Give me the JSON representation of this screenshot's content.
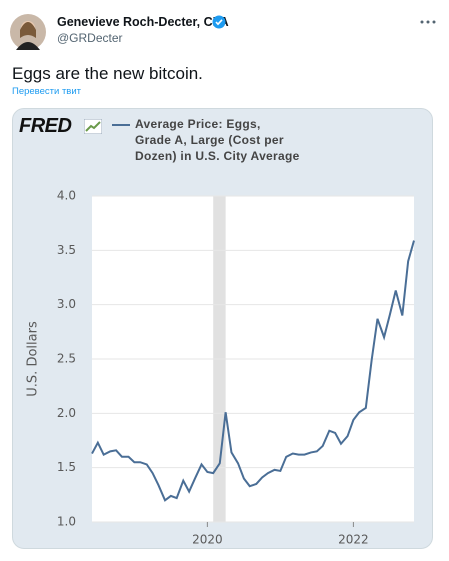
{
  "tweet": {
    "author": "Genevieve Roch-Decter, CFA",
    "handle": "@GRDecter",
    "text": "Eggs are the new bitcoin.",
    "translate": "Перевести твит"
  },
  "chart_data": {
    "type": "line",
    "logo": "FRED",
    "ylabel": "U.S. Dollars",
    "x": [
      2018.42,
      2018.5,
      2018.58,
      2018.67,
      2018.75,
      2018.83,
      2018.92,
      2019.0,
      2019.08,
      2019.17,
      2019.25,
      2019.33,
      2019.42,
      2019.5,
      2019.58,
      2019.67,
      2019.75,
      2019.83,
      2019.92,
      2020.0,
      2020.08,
      2020.17,
      2020.25,
      2020.33,
      2020.42,
      2020.5,
      2020.58,
      2020.67,
      2020.75,
      2020.83,
      2020.92,
      2021.0,
      2021.08,
      2021.17,
      2021.25,
      2021.33,
      2021.42,
      2021.5,
      2021.58,
      2021.67,
      2021.75,
      2021.83,
      2021.92,
      2022.0,
      2022.08,
      2022.17,
      2022.25,
      2022.33,
      2022.42,
      2022.5,
      2022.58,
      2022.67,
      2022.75,
      2022.83
    ],
    "series": [
      {
        "name": "Average Price: Eggs, Grade A, Large (Cost per Dozen) in U.S. City Average",
        "color": "#4a6e96",
        "values": [
          1.63,
          1.73,
          1.62,
          1.65,
          1.66,
          1.6,
          1.6,
          1.55,
          1.55,
          1.53,
          1.45,
          1.34,
          1.2,
          1.24,
          1.22,
          1.38,
          1.28,
          1.4,
          1.53,
          1.46,
          1.45,
          1.54,
          2.01,
          1.64,
          1.54,
          1.4,
          1.33,
          1.35,
          1.41,
          1.45,
          1.48,
          1.47,
          1.6,
          1.63,
          1.62,
          1.62,
          1.64,
          1.65,
          1.7,
          1.84,
          1.82,
          1.72,
          1.79,
          1.94,
          2.01,
          2.05,
          2.49,
          2.87,
          2.7,
          2.91,
          3.13,
          2.9,
          3.4,
          3.59
        ]
      }
    ],
    "shaded_ranges": [
      [
        2020.08,
        2020.25
      ]
    ],
    "xlim": [
      2018.42,
      2022.83
    ],
    "xticks": [
      2020,
      2022
    ],
    "ylim": [
      1.0,
      4.0
    ],
    "yticks": [
      {
        "value": 1.0,
        "label": "1.0"
      },
      {
        "value": 1.5,
        "label": "1.5"
      },
      {
        "value": 2.0,
        "label": "2.0"
      },
      {
        "value": 2.5,
        "label": "2.5"
      },
      {
        "value": 3.0,
        "label": "3.0"
      },
      {
        "value": 3.5,
        "label": "3.5"
      },
      {
        "value": 4.0,
        "label": "4.0"
      }
    ],
    "grid": true
  }
}
